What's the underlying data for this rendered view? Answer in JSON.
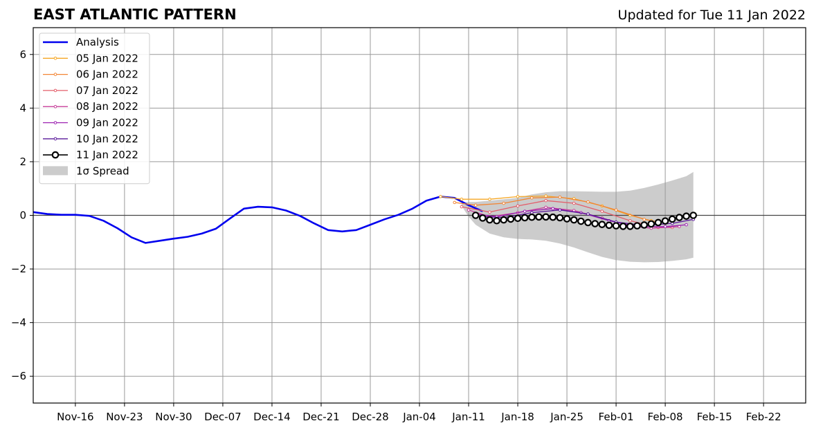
{
  "chart_data": {
    "type": "line",
    "title": "EAST ATLANTIC PATTERN",
    "subtitle": "Updated for Tue 11 Jan 2022",
    "xlabel": "",
    "ylabel": "",
    "x_axis_type": "date",
    "xlim": [
      "2021-11-10",
      "2022-02-28"
    ],
    "ylim": [
      -7,
      7
    ],
    "grid": true,
    "legend_position": "top-left",
    "x_ticks": [
      {
        "date": "2021-11-16",
        "label": "Nov-16"
      },
      {
        "date": "2021-11-23",
        "label": "Nov-23"
      },
      {
        "date": "2021-11-30",
        "label": "Nov-30"
      },
      {
        "date": "2021-12-07",
        "label": "Dec-07"
      },
      {
        "date": "2021-12-14",
        "label": "Dec-14"
      },
      {
        "date": "2021-12-21",
        "label": "Dec-21"
      },
      {
        "date": "2021-12-28",
        "label": "Dec-28"
      },
      {
        "date": "2022-01-04",
        "label": "Jan-04"
      },
      {
        "date": "2022-01-11",
        "label": "Jan-11"
      },
      {
        "date": "2022-01-18",
        "label": "Jan-18"
      },
      {
        "date": "2022-01-25",
        "label": "Jan-25"
      },
      {
        "date": "2022-02-01",
        "label": "Feb-01"
      },
      {
        "date": "2022-02-08",
        "label": "Feb-08"
      },
      {
        "date": "2022-02-15",
        "label": "Feb-15"
      },
      {
        "date": "2022-02-22",
        "label": "Feb-22"
      }
    ],
    "y_ticks": [
      {
        "value": -6,
        "label": "−6"
      },
      {
        "value": -4,
        "label": "−4"
      },
      {
        "value": -2,
        "label": "−2"
      },
      {
        "value": 0,
        "label": "0"
      },
      {
        "value": 2,
        "label": "2"
      },
      {
        "value": 4,
        "label": "4"
      },
      {
        "value": 6,
        "label": "6"
      }
    ],
    "series": [
      {
        "name": "Analysis",
        "color": "#0000ee",
        "style": "line",
        "points": [
          [
            "2021-11-10",
            0.12
          ],
          [
            "2021-11-12",
            0.05
          ],
          [
            "2021-11-14",
            0.02
          ],
          [
            "2021-11-16",
            0.02
          ],
          [
            "2021-11-18",
            -0.02
          ],
          [
            "2021-11-20",
            -0.2
          ],
          [
            "2021-11-22",
            -0.48
          ],
          [
            "2021-11-24",
            -0.82
          ],
          [
            "2021-11-26",
            -1.03
          ],
          [
            "2021-11-28",
            -0.95
          ],
          [
            "2021-11-30",
            -0.87
          ],
          [
            "2021-12-02",
            -0.8
          ],
          [
            "2021-12-04",
            -0.68
          ],
          [
            "2021-12-06",
            -0.5
          ],
          [
            "2021-12-08",
            -0.12
          ],
          [
            "2021-12-10",
            0.25
          ],
          [
            "2021-12-12",
            0.32
          ],
          [
            "2021-12-14",
            0.3
          ],
          [
            "2021-12-16",
            0.18
          ],
          [
            "2021-12-18",
            -0.02
          ],
          [
            "2021-12-20",
            -0.3
          ],
          [
            "2021-12-22",
            -0.55
          ],
          [
            "2021-12-24",
            -0.6
          ],
          [
            "2021-12-26",
            -0.55
          ],
          [
            "2021-12-28",
            -0.35
          ],
          [
            "2021-12-30",
            -0.15
          ],
          [
            "2022-01-01",
            0.02
          ],
          [
            "2022-01-03",
            0.25
          ],
          [
            "2022-01-05",
            0.55
          ],
          [
            "2022-01-07",
            0.7
          ],
          [
            "2022-01-09",
            0.65
          ],
          [
            "2022-01-11",
            0.38
          ],
          [
            "2022-01-13",
            0.15
          ]
        ]
      },
      {
        "name": "05 Jan 2022",
        "color": "#f5a623",
        "style": "line-small-markers",
        "points": [
          [
            "2022-01-07",
            0.7
          ],
          [
            "2022-01-10",
            0.6
          ],
          [
            "2022-01-14",
            0.6
          ],
          [
            "2022-01-18",
            0.7
          ],
          [
            "2022-01-22",
            0.72
          ],
          [
            "2022-01-26",
            0.62
          ],
          [
            "2022-01-30",
            0.35
          ],
          [
            "2022-02-03",
            0.0
          ],
          [
            "2022-02-06",
            -0.2
          ]
        ]
      },
      {
        "name": "06 Jan 2022",
        "color": "#f28534",
        "style": "line-small-markers",
        "points": [
          [
            "2022-01-09",
            0.48
          ],
          [
            "2022-01-12",
            0.38
          ],
          [
            "2022-01-16",
            0.45
          ],
          [
            "2022-01-20",
            0.65
          ],
          [
            "2022-01-24",
            0.68
          ],
          [
            "2022-01-28",
            0.5
          ],
          [
            "2022-02-01",
            0.2
          ],
          [
            "2022-02-05",
            -0.15
          ],
          [
            "2022-02-07",
            -0.25
          ]
        ]
      },
      {
        "name": "07 Jan 2022",
        "color": "#e35d6a",
        "style": "line-small-markers",
        "points": [
          [
            "2022-01-10",
            0.32
          ],
          [
            "2022-01-14",
            0.12
          ],
          [
            "2022-01-18",
            0.35
          ],
          [
            "2022-01-22",
            0.55
          ],
          [
            "2022-01-26",
            0.45
          ],
          [
            "2022-01-30",
            0.15
          ],
          [
            "2022-02-03",
            -0.2
          ],
          [
            "2022-02-07",
            -0.45
          ],
          [
            "2022-02-09",
            -0.45
          ]
        ]
      },
      {
        "name": "08 Jan 2022",
        "color": "#c73e9a",
        "style": "line-small-markers",
        "points": [
          [
            "2022-01-11",
            0.2
          ],
          [
            "2022-01-14",
            -0.05
          ],
          [
            "2022-01-18",
            0.1
          ],
          [
            "2022-01-22",
            0.3
          ],
          [
            "2022-01-26",
            0.18
          ],
          [
            "2022-01-30",
            -0.1
          ],
          [
            "2022-02-03",
            -0.4
          ],
          [
            "2022-02-06",
            -0.48
          ],
          [
            "2022-02-10",
            -0.42
          ]
        ]
      },
      {
        "name": "09 Jan 2022",
        "color": "#9b1fb0",
        "style": "line-small-markers",
        "points": [
          [
            "2022-01-12",
            0.05
          ],
          [
            "2022-01-15",
            -0.05
          ],
          [
            "2022-01-19",
            0.15
          ],
          [
            "2022-01-23",
            0.25
          ],
          [
            "2022-01-27",
            0.1
          ],
          [
            "2022-01-31",
            -0.2
          ],
          [
            "2022-02-04",
            -0.42
          ],
          [
            "2022-02-08",
            -0.42
          ],
          [
            "2022-02-11",
            -0.35
          ]
        ]
      },
      {
        "name": "10 Jan 2022",
        "color": "#5a189a",
        "style": "line-small-markers",
        "points": [
          [
            "2022-01-13",
            -0.05
          ],
          [
            "2022-01-16",
            -0.08
          ],
          [
            "2022-01-20",
            0.1
          ],
          [
            "2022-01-24",
            0.2
          ],
          [
            "2022-01-28",
            0.05
          ],
          [
            "2022-02-01",
            -0.25
          ],
          [
            "2022-02-05",
            -0.38
          ],
          [
            "2022-02-09",
            -0.3
          ],
          [
            "2022-02-12",
            -0.15
          ]
        ]
      },
      {
        "name": "11 Jan 2022",
        "color": "#000000",
        "style": "line-open-circles",
        "points": [
          [
            "2022-01-12",
            0.0
          ],
          [
            "2022-01-13",
            -0.1
          ],
          [
            "2022-01-14",
            -0.17
          ],
          [
            "2022-01-15",
            -0.2
          ],
          [
            "2022-01-16",
            -0.17
          ],
          [
            "2022-01-17",
            -0.14
          ],
          [
            "2022-01-18",
            -0.11
          ],
          [
            "2022-01-19",
            -0.09
          ],
          [
            "2022-01-20",
            -0.07
          ],
          [
            "2022-01-21",
            -0.06
          ],
          [
            "2022-01-22",
            -0.06
          ],
          [
            "2022-01-23",
            -0.07
          ],
          [
            "2022-01-24",
            -0.09
          ],
          [
            "2022-01-25",
            -0.13
          ],
          [
            "2022-01-26",
            -0.17
          ],
          [
            "2022-01-27",
            -0.22
          ],
          [
            "2022-01-28",
            -0.27
          ],
          [
            "2022-01-29",
            -0.31
          ],
          [
            "2022-01-30",
            -0.34
          ],
          [
            "2022-01-31",
            -0.37
          ],
          [
            "2022-02-01",
            -0.39
          ],
          [
            "2022-02-02",
            -0.41
          ],
          [
            "2022-02-03",
            -0.41
          ],
          [
            "2022-02-04",
            -0.39
          ],
          [
            "2022-02-05",
            -0.36
          ],
          [
            "2022-02-06",
            -0.32
          ],
          [
            "2022-02-07",
            -0.27
          ],
          [
            "2022-02-08",
            -0.21
          ],
          [
            "2022-02-09",
            -0.14
          ],
          [
            "2022-02-10",
            -0.08
          ],
          [
            "2022-02-11",
            -0.03
          ],
          [
            "2022-02-12",
            0.0
          ]
        ]
      }
    ],
    "spread": {
      "label": "1σ Spread",
      "color": "#cccccc",
      "points": [
        [
          "2022-01-10",
          0.45,
          0.35
        ],
        [
          "2022-01-11",
          0.5,
          -0.05
        ],
        [
          "2022-01-12",
          0.5,
          -0.35
        ],
        [
          "2022-01-14",
          0.55,
          -0.68
        ],
        [
          "2022-01-16",
          0.6,
          -0.82
        ],
        [
          "2022-01-18",
          0.65,
          -0.88
        ],
        [
          "2022-01-20",
          0.78,
          -0.9
        ],
        [
          "2022-01-22",
          0.86,
          -0.95
        ],
        [
          "2022-01-24",
          0.9,
          -1.05
        ],
        [
          "2022-01-26",
          0.9,
          -1.2
        ],
        [
          "2022-01-28",
          0.89,
          -1.38
        ],
        [
          "2022-01-30",
          0.88,
          -1.55
        ],
        [
          "2022-02-01",
          0.88,
          -1.67
        ],
        [
          "2022-02-03",
          0.92,
          -1.73
        ],
        [
          "2022-02-05",
          1.02,
          -1.75
        ],
        [
          "2022-02-07",
          1.15,
          -1.74
        ],
        [
          "2022-02-09",
          1.3,
          -1.7
        ],
        [
          "2022-02-11",
          1.46,
          -1.64
        ],
        [
          "2022-02-12",
          1.62,
          -1.58
        ]
      ]
    }
  }
}
